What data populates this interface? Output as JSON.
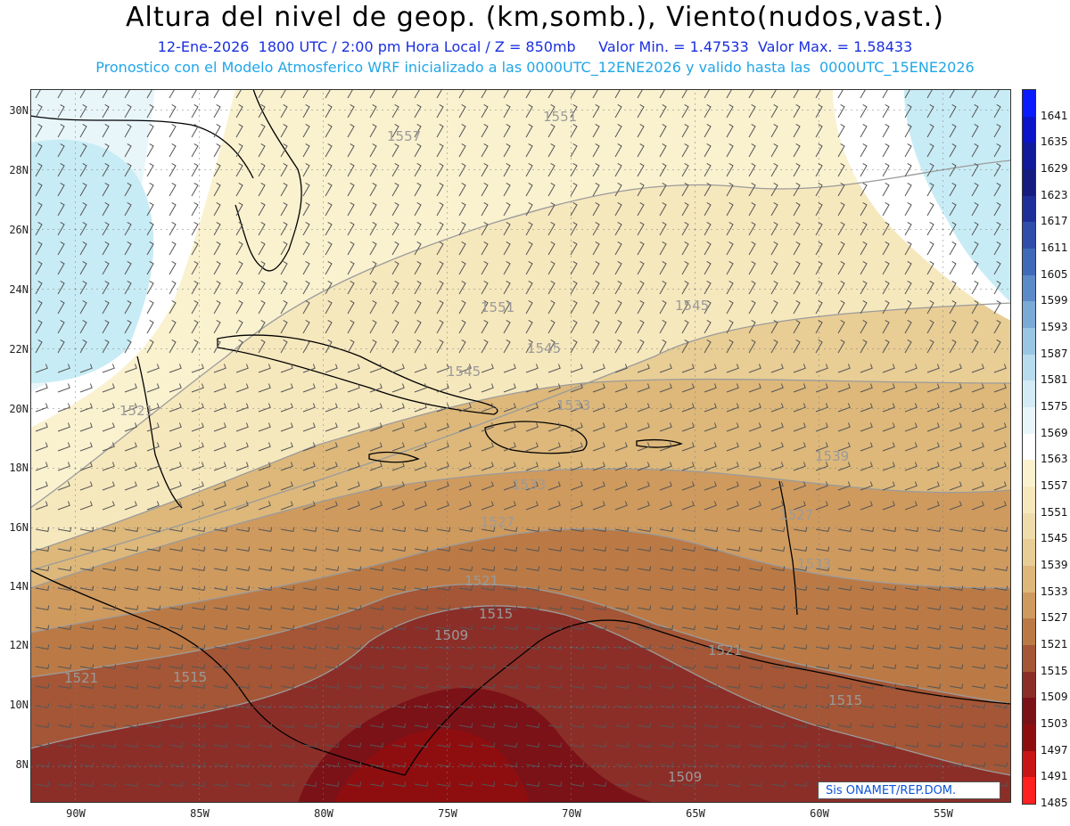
{
  "header": {
    "title": "Altura del nivel de geop. (km,somb.), Viento(nudos,vast.)",
    "subtitle1": "12-Ene-2026  1800 UTC / 2:00 pm Hora Local / Z = 850mb     Valor Min. = 1.47533  Valor Max. = 1.58433",
    "subtitle2": "Pronostico con el Modelo Atmosferico WRF inicializado a las 0000UTC_12ENE2026 y valido hasta las  0000UTC_15ENE2026"
  },
  "axes": {
    "lat_labels": [
      "30N",
      "28N",
      "26N",
      "24N",
      "22N",
      "20N",
      "18N",
      "16N",
      "14N",
      "12N",
      "10N",
      "8N"
    ],
    "lon_labels": [
      "90W",
      "85W",
      "80W",
      "75W",
      "70W",
      "65W",
      "60W",
      "55W"
    ]
  },
  "colorbar": {
    "labels": [
      "1641",
      "1635",
      "1629",
      "1623",
      "1617",
      "1611",
      "1605",
      "1599",
      "1593",
      "1587",
      "1581",
      "1575",
      "1569",
      "1563",
      "1557",
      "1551",
      "1545",
      "1539",
      "1533",
      "1527",
      "1521",
      "1515",
      "1509",
      "1503",
      "1497",
      "1491",
      "1485"
    ],
    "colors": [
      "#0a1cff",
      "#0b14c8",
      "#101a9a",
      "#141c80",
      "#1f2f9a",
      "#2f4eaa",
      "#3f6ab8",
      "#5b8ac8",
      "#7aaad6",
      "#9ac6e4",
      "#b8dcee",
      "#d3ebf4",
      "#e8f6fa",
      "#ffffff",
      "#faf1cf",
      "#f6e8bd",
      "#efdcab",
      "#e8cd95",
      "#ddb87a",
      "#cf9a5e",
      "#bb7a45",
      "#a45636",
      "#8c2e28",
      "#7a1218",
      "#8e0e10",
      "#c81616",
      "#ff2020"
    ]
  },
  "contour_labels": [
    "1551",
    "1557",
    "1551",
    "1545",
    "1545",
    "1545",
    "1533",
    "1539",
    "1533",
    "1527",
    "1527",
    "1533",
    "1521",
    "1521",
    "1515",
    "1509",
    "1515",
    "1521",
    "1515",
    "1509",
    "1521"
  ],
  "stamp": {
    "text": "Sis     ONAMET/REP.DOM."
  },
  "colors": {
    "title": "#000000",
    "subtitle1": "#1a2fe0",
    "subtitle2": "#21a6e8",
    "stamp_text": "#0a55d8"
  }
}
